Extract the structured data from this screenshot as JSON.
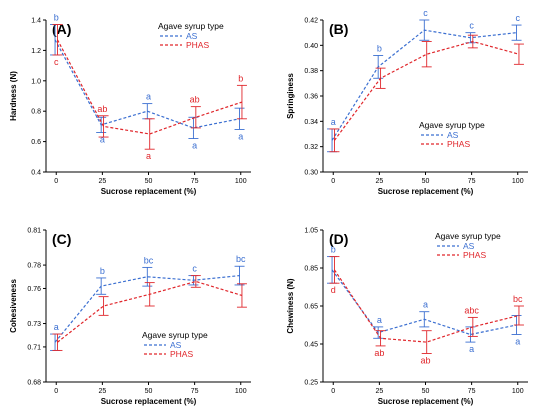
{
  "colors": {
    "AS": "#3b6fd1",
    "PHAS": "#e0262b",
    "axis": "#000000"
  },
  "chart_data": [
    {
      "type": "line",
      "panel_label": "(A)",
      "xlabel": "Sucrose replacement (%)",
      "ylabel": "Hardness (N)",
      "categories": [
        "0",
        "25",
        "50",
        "75",
        "100"
      ],
      "ylim": [
        0.4,
        1.4
      ],
      "yticks": [
        "0.4",
        "0.6",
        "0.8",
        "1.0",
        "1.2",
        "1.4"
      ],
      "legend_title": "Agave syrup type",
      "legend_position": "top-right",
      "series": [
        {
          "name": "AS",
          "values": [
            1.27,
            0.71,
            0.8,
            0.69,
            0.75
          ],
          "errors": [
            0.1,
            0.05,
            0.05,
            0.07,
            0.07
          ],
          "letters": [
            "b",
            "a",
            "a",
            "a",
            "a"
          ],
          "letter_pos": [
            "above",
            "below",
            "above",
            "below",
            "below"
          ]
        },
        {
          "name": "PHAS",
          "values": [
            1.27,
            0.7,
            0.65,
            0.76,
            0.86
          ],
          "errors": [
            0.1,
            0.07,
            0.1,
            0.07,
            0.11
          ],
          "letters": [
            "c",
            "ab",
            "a",
            "ab",
            "b"
          ],
          "letter_pos": [
            "below",
            "above",
            "below",
            "above",
            "above"
          ]
        }
      ]
    },
    {
      "type": "line",
      "panel_label": "(B)",
      "xlabel": "Sucrose replacement (%)",
      "ylabel": "Springiness",
      "categories": [
        "0",
        "25",
        "50",
        "75",
        "100"
      ],
      "ylim": [
        0.3,
        0.42
      ],
      "yticks": [
        "0.30",
        "0.32",
        "0.34",
        "0.36",
        "0.38",
        "0.40",
        "0.42"
      ],
      "legend_title": "Agave syrup type",
      "legend_position": "bottom-right",
      "series": [
        {
          "name": "AS",
          "values": [
            0.325,
            0.383,
            0.412,
            0.406,
            0.41
          ],
          "errors": [
            0.009,
            0.009,
            0.008,
            0.004,
            0.006
          ],
          "letters": [
            "a",
            "b",
            "c",
            "c",
            "c"
          ],
          "letter_pos": [
            "above",
            "above",
            "above",
            "above",
            "above"
          ]
        },
        {
          "name": "PHAS",
          "values": [
            0.325,
            0.374,
            0.393,
            0.403,
            0.393
          ],
          "errors": [
            0.009,
            0.008,
            0.01,
            0.005,
            0.008
          ],
          "letters": [
            "",
            "",
            "",
            "",
            ""
          ],
          "letter_pos": [
            "below",
            "below",
            "below",
            "below",
            "below"
          ]
        }
      ]
    },
    {
      "type": "line",
      "panel_label": "(C)",
      "xlabel": "Sucrose replacement (%)",
      "ylabel": "Cohesiveness",
      "categories": [
        "0",
        "25",
        "50",
        "75",
        "100"
      ],
      "ylim": [
        0.68,
        0.81
      ],
      "yticks": [
        "0.68",
        "0.71",
        "0.73",
        "0.76",
        "0.78",
        "0.81"
      ],
      "legend_title": "Agave syrup type",
      "legend_position": "bottom-right",
      "series": [
        {
          "name": "AS",
          "values": [
            0.714,
            0.762,
            0.77,
            0.767,
            0.771
          ],
          "errors": [
            0.007,
            0.007,
            0.008,
            0.004,
            0.008
          ],
          "letters": [
            "a",
            "b",
            "bc",
            "c",
            "bc"
          ],
          "letter_pos": [
            "above",
            "above",
            "above",
            "above",
            "above"
          ]
        },
        {
          "name": "PHAS",
          "values": [
            0.714,
            0.745,
            0.755,
            0.766,
            0.754
          ],
          "errors": [
            0.007,
            0.008,
            0.01,
            0.005,
            0.01
          ],
          "letters": [
            "",
            "",
            "",
            "",
            ""
          ],
          "letter_pos": [
            "below",
            "below",
            "below",
            "below",
            "below"
          ]
        }
      ]
    },
    {
      "type": "line",
      "panel_label": "(D)",
      "xlabel": "Sucrose replacement (%)",
      "ylabel": "Chewiness   (N)",
      "categories": [
        "0",
        "25",
        "50",
        "75",
        "100"
      ],
      "ylim": [
        0.25,
        1.05
      ],
      "yticks": [
        "0.25",
        "0.45",
        "0.65",
        "0.85",
        "1.05"
      ],
      "legend_title": "Agave syrup type",
      "legend_position": "top-right",
      "series": [
        {
          "name": "AS",
          "values": [
            0.84,
            0.51,
            0.58,
            0.5,
            0.55
          ],
          "errors": [
            0.07,
            0.03,
            0.04,
            0.04,
            0.05
          ],
          "letters": [
            "b",
            "a",
            "a",
            "a",
            "a"
          ],
          "letter_pos": [
            "above",
            "above",
            "above",
            "below",
            "below"
          ]
        },
        {
          "name": "PHAS",
          "values": [
            0.84,
            0.48,
            0.46,
            0.54,
            0.6
          ],
          "errors": [
            0.07,
            0.04,
            0.06,
            0.05,
            0.05
          ],
          "letters": [
            "d",
            "ab",
            "ab",
            "abc",
            "bc"
          ],
          "letter_pos": [
            "below",
            "below",
            "below",
            "above",
            "above"
          ]
        }
      ]
    }
  ]
}
